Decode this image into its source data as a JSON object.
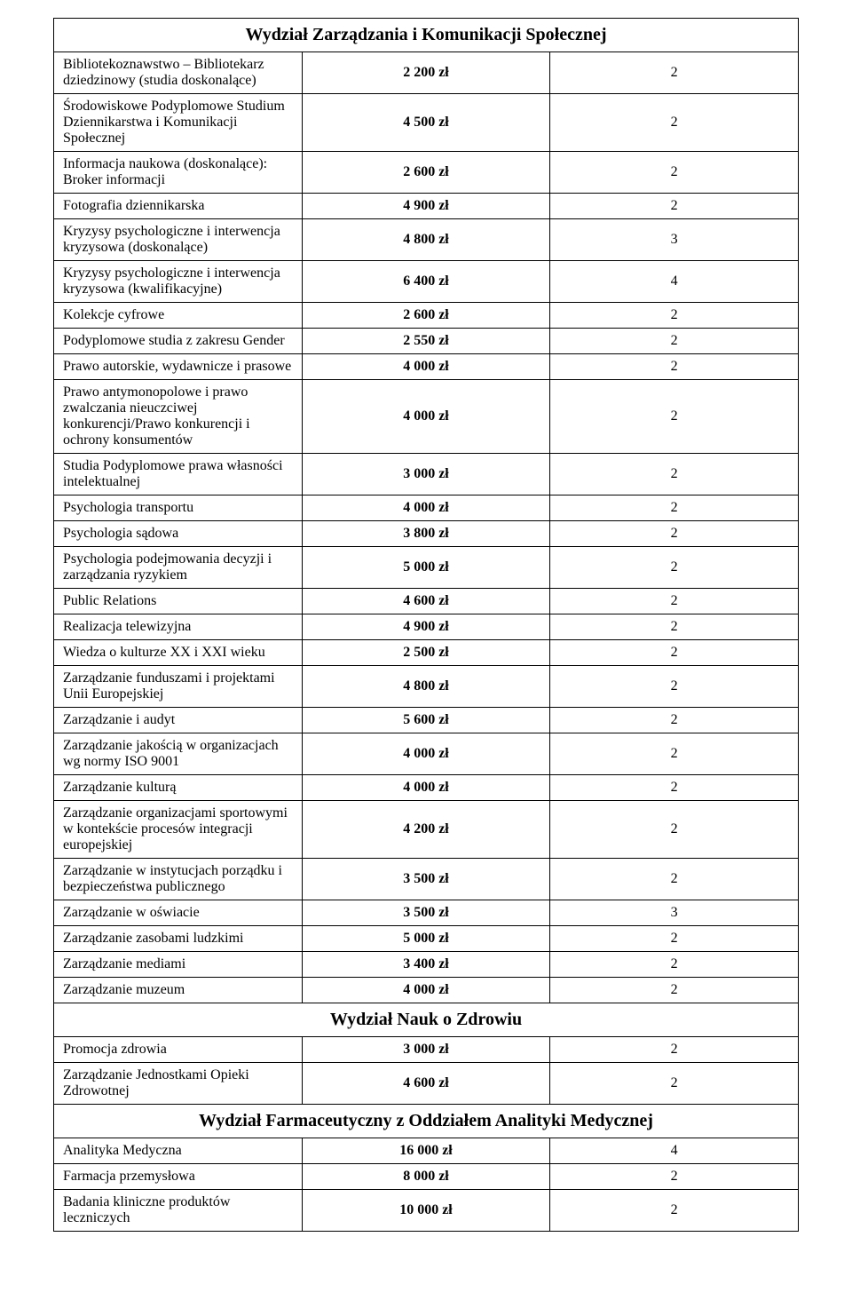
{
  "table": {
    "col_widths": [
      "64%",
      "20%",
      "16%"
    ],
    "rows": [
      {
        "type": "section",
        "label": "Wydział Zarządzania i Komunikacji Społecznej"
      },
      {
        "type": "data",
        "name": "Bibliotekoznawstwo – Bibliotekarz dziedzinowy (studia doskonalące)",
        "price": "2 200 zł",
        "sem": "2"
      },
      {
        "type": "data",
        "name": "Środowiskowe Podyplomowe Studium Dziennikarstwa i Komunikacji Społecznej",
        "price": "4 500 zł",
        "sem": "2"
      },
      {
        "type": "data",
        "name": "Informacja naukowa (doskonalące): Broker informacji",
        "price": "2 600 zł",
        "sem": "2"
      },
      {
        "type": "data",
        "name": "Fotografia dziennikarska",
        "price": "4 900 zł",
        "sem": "2"
      },
      {
        "type": "data",
        "name": "Kryzysy psychologiczne i interwencja kryzysowa (doskonalące)",
        "price": "4 800 zł",
        "sem": "3"
      },
      {
        "type": "data",
        "name": "Kryzysy psychologiczne i interwencja kryzysowa (kwalifikacyjne)",
        "price": "6 400 zł",
        "sem": "4"
      },
      {
        "type": "data",
        "name": "Kolekcje cyfrowe",
        "price": "2 600 zł",
        "sem": "2"
      },
      {
        "type": "data",
        "name": "Podyplomowe studia z zakresu Gender",
        "price": "2 550 zł",
        "sem": "2"
      },
      {
        "type": "data",
        "name": "Prawo autorskie, wydawnicze i prasowe",
        "price": "4 000 zł",
        "sem": "2"
      },
      {
        "type": "data",
        "name": "Prawo antymonopolowe i prawo zwalczania nieuczciwej konkurencji/Prawo konkurencji i ochrony konsumentów",
        "price": "4 000 zł",
        "sem": "2"
      },
      {
        "type": "data",
        "name": "Studia Podyplomowe prawa własności intelektualnej",
        "price": "3 000 zł",
        "sem": "2"
      },
      {
        "type": "data",
        "name": "Psychologia transportu",
        "price": "4 000 zł",
        "sem": "2"
      },
      {
        "type": "data",
        "name": "Psychologia sądowa",
        "price": "3 800 zł",
        "sem": "2"
      },
      {
        "type": "data",
        "name": "Psychologia podejmowania decyzji i zarządzania ryzykiem",
        "price": "5 000 zł",
        "sem": "2"
      },
      {
        "type": "data",
        "name": "Public Relations",
        "price": "4 600 zł",
        "sem": "2"
      },
      {
        "type": "data",
        "name": "Realizacja telewizyjna",
        "price": "4 900 zł",
        "sem": "2"
      },
      {
        "type": "data",
        "name": "Wiedza o kulturze XX i XXI wieku",
        "price": "2 500 zł",
        "sem": "2"
      },
      {
        "type": "data",
        "name": "Zarządzanie funduszami i projektami Unii Europejskiej",
        "price": "4 800 zł",
        "sem": "2"
      },
      {
        "type": "data",
        "name": "Zarządzanie i audyt",
        "price": "5 600 zł",
        "sem": "2"
      },
      {
        "type": "data",
        "name": "Zarządzanie jakością w organizacjach wg normy ISO 9001",
        "price": "4 000 zł",
        "sem": "2"
      },
      {
        "type": "data",
        "name": "Zarządzanie kulturą",
        "price": "4 000 zł",
        "sem": "2"
      },
      {
        "type": "data",
        "name": "Zarządzanie organizacjami sportowymi w kontekście procesów integracji europejskiej",
        "price": "4 200 zł",
        "sem": "2"
      },
      {
        "type": "data",
        "name": "Zarządzanie w instytucjach porządku i bezpieczeństwa publicznego",
        "price": "3 500 zł",
        "sem": "2"
      },
      {
        "type": "data",
        "name": "Zarządzanie w oświacie",
        "price": "3 500 zł",
        "sem": "3"
      },
      {
        "type": "data",
        "name": "Zarządzanie zasobami ludzkimi",
        "price": "5 000 zł",
        "sem": "2"
      },
      {
        "type": "data",
        "name": "Zarządzanie mediami",
        "price": "3 400 zł",
        "sem": "2"
      },
      {
        "type": "data",
        "name": "Zarządzanie muzeum",
        "price": "4 000 zł",
        "sem": "2"
      },
      {
        "type": "section",
        "label": "Wydział Nauk o Zdrowiu"
      },
      {
        "type": "data",
        "name": "Promocja zdrowia",
        "price": "3 000 zł",
        "sem": "2"
      },
      {
        "type": "data",
        "name": "Zarządzanie Jednostkami Opieki Zdrowotnej",
        "price": "4 600 zł",
        "sem": "2"
      },
      {
        "type": "section",
        "label": "Wydział Farmaceutyczny z Oddziałem Analityki Medycznej"
      },
      {
        "type": "data",
        "name": "Analityka Medyczna",
        "price": "16 000 zł",
        "sem": "4"
      },
      {
        "type": "data",
        "name": "Farmacja przemysłowa",
        "price": "8 000 zł",
        "sem": "2"
      },
      {
        "type": "data",
        "name": "Badania kliniczne produktów leczniczych",
        "price": "10 000 zł",
        "sem": "2"
      }
    ]
  }
}
